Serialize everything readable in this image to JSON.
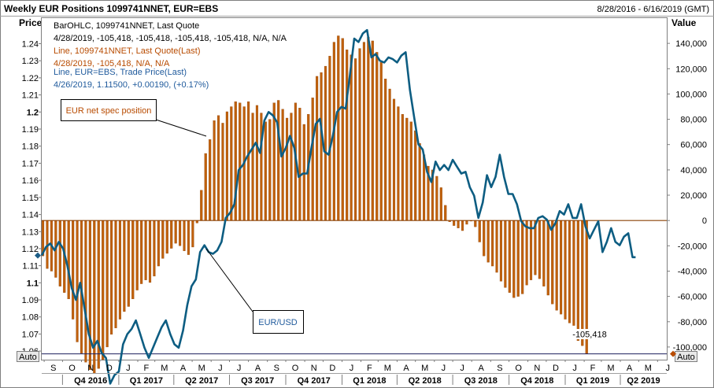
{
  "header": {
    "title": "Weekly EUR Positions 1099741NNET, EUR=EBS",
    "date_range": "8/28/2016 - 6/16/2019 (GMT)"
  },
  "axes": {
    "left_title": "Price",
    "right_title": "Value",
    "left_auto": "Auto",
    "right_auto": "Auto"
  },
  "legend": {
    "line1": "BarOHLC, 1099741NNET, Last Quote",
    "line2": "4/28/2019, -105,418, -105,418, -105,418, -105,418, N/A, N/A",
    "line3": "Line, 1099741NNET, Last Quote(Last)",
    "line4": "4/28/2019, -105,418, N/A, N/A",
    "line5": "Line, EUR=EBS, Trade Price(Last)",
    "line6": "4/26/2019, 1.11500, +0.00190, (+0.17%)"
  },
  "annotations": {
    "net_spec": "EUR net spec position",
    "eurusd": "EUR/USD",
    "last_value": "-105,418"
  },
  "colors": {
    "bars": "#c0600b",
    "bar_edge": "#8a4005",
    "line": "#0d5d82",
    "legend_orange": "#b84b00",
    "legend_blue": "#1f5a9c",
    "grid": "#ccd7e3",
    "ref_line": "#1c1f5e"
  },
  "chart_data": {
    "type": "bar",
    "title": "Weekly EUR Positions 1099741NNET, EUR=EBS",
    "x_range": [
      "2016-08-28",
      "2019-06-16"
    ],
    "bar_series": {
      "name": "1099741NNET",
      "axis": "right",
      "start_date": "2016-08-30",
      "step_days": 7,
      "values": [
        -28000,
        -38000,
        -40000,
        -45000,
        -52000,
        -57000,
        -62000,
        -78000,
        -96000,
        -105000,
        -112000,
        -118000,
        -121000,
        -117000,
        -110000,
        -100000,
        -90000,
        -85000,
        -78000,
        -72000,
        -68000,
        -62000,
        -55000,
        -50000,
        -47000,
        -49000,
        -44000,
        -36000,
        -30000,
        -26000,
        -22000,
        -18000,
        -20000,
        -24000,
        -27000,
        -21000,
        -2000,
        24000,
        53000,
        64000,
        79000,
        83000,
        77000,
        86000,
        90000,
        94000,
        93000,
        90000,
        94000,
        85000,
        91000,
        85000,
        78000,
        80000,
        93000,
        95000,
        88000,
        81000,
        85000,
        93000,
        89000,
        76000,
        84000,
        97000,
        114000,
        117000,
        122000,
        130000,
        141000,
        146000,
        144000,
        135000,
        131000,
        128000,
        136000,
        141000,
        145000,
        142000,
        133000,
        125000,
        112000,
        104000,
        96000,
        90000,
        84000,
        81000,
        78000,
        71000,
        61000,
        52000,
        43000,
        40000,
        35000,
        26000,
        12000,
        -1000,
        -4000,
        -6000,
        -8000,
        -3000,
        0,
        -5000,
        -17000,
        -28000,
        -33000,
        -36000,
        -41000,
        -48000,
        -53000,
        -57000,
        -61000,
        -60000,
        -58000,
        -51000,
        -47000,
        -43000,
        -46000,
        -52000,
        -59000,
        -66000,
        -71000,
        -74000,
        -78000,
        -81000,
        -83000,
        -95000,
        -99000,
        -105418
      ]
    },
    "line_series": {
      "name": "EUR=EBS",
      "axis": "left",
      "points": [
        [
          "2016-08-28",
          1.116
        ],
        [
          "2016-09-04",
          1.121
        ],
        [
          "2016-09-11",
          1.123
        ],
        [
          "2016-09-18",
          1.119
        ],
        [
          "2016-09-25",
          1.124
        ],
        [
          "2016-10-02",
          1.12
        ],
        [
          "2016-10-09",
          1.11
        ],
        [
          "2016-10-16",
          1.097
        ],
        [
          "2016-10-23",
          1.09
        ],
        [
          "2016-10-30",
          1.1
        ],
        [
          "2016-11-06",
          1.085
        ],
        [
          "2016-11-13",
          1.07
        ],
        [
          "2016-11-20",
          1.062
        ],
        [
          "2016-11-27",
          1.066
        ],
        [
          "2016-12-04",
          1.059
        ],
        [
          "2016-12-11",
          1.056
        ],
        [
          "2016-12-18",
          1.041
        ],
        [
          "2016-12-25",
          1.046
        ],
        [
          "2017-01-01",
          1.048
        ],
        [
          "2017-01-08",
          1.064
        ],
        [
          "2017-01-15",
          1.07
        ],
        [
          "2017-01-22",
          1.073
        ],
        [
          "2017-01-29",
          1.078
        ],
        [
          "2017-02-05",
          1.07
        ],
        [
          "2017-02-12",
          1.062
        ],
        [
          "2017-02-19",
          1.056
        ],
        [
          "2017-02-26",
          1.062
        ],
        [
          "2017-03-05",
          1.068
        ],
        [
          "2017-03-12",
          1.074
        ],
        [
          "2017-03-19",
          1.078
        ],
        [
          "2017-03-26",
          1.07
        ],
        [
          "2017-04-02",
          1.064
        ],
        [
          "2017-04-09",
          1.062
        ],
        [
          "2017-04-16",
          1.072
        ],
        [
          "2017-04-23",
          1.087
        ],
        [
          "2017-04-30",
          1.098
        ],
        [
          "2017-05-07",
          1.102
        ],
        [
          "2017-05-14",
          1.118
        ],
        [
          "2017-05-21",
          1.122
        ],
        [
          "2017-05-28",
          1.118
        ],
        [
          "2017-06-04",
          1.117
        ],
        [
          "2017-06-11",
          1.119
        ],
        [
          "2017-06-18",
          1.124
        ],
        [
          "2017-06-25",
          1.138
        ],
        [
          "2017-07-02",
          1.141
        ],
        [
          "2017-07-09",
          1.146
        ],
        [
          "2017-07-16",
          1.166
        ],
        [
          "2017-07-23",
          1.169
        ],
        [
          "2017-07-30",
          1.174
        ],
        [
          "2017-08-06",
          1.178
        ],
        [
          "2017-08-13",
          1.182
        ],
        [
          "2017-08-20",
          1.176
        ],
        [
          "2017-08-27",
          1.195
        ],
        [
          "2017-09-03",
          1.2
        ],
        [
          "2017-09-10",
          1.198
        ],
        [
          "2017-09-17",
          1.194
        ],
        [
          "2017-09-24",
          1.174
        ],
        [
          "2017-10-01",
          1.179
        ],
        [
          "2017-10-08",
          1.186
        ],
        [
          "2017-10-15",
          1.179
        ],
        [
          "2017-10-22",
          1.162
        ],
        [
          "2017-10-29",
          1.164
        ],
        [
          "2017-11-05",
          1.164
        ],
        [
          "2017-11-12",
          1.179
        ],
        [
          "2017-11-19",
          1.193
        ],
        [
          "2017-11-26",
          1.196
        ],
        [
          "2017-12-03",
          1.177
        ],
        [
          "2017-12-10",
          1.175
        ],
        [
          "2017-12-17",
          1.186
        ],
        [
          "2017-12-24",
          1.2
        ],
        [
          "2017-12-31",
          1.203
        ],
        [
          "2018-01-07",
          1.202
        ],
        [
          "2018-01-14",
          1.222
        ],
        [
          "2018-01-21",
          1.243
        ],
        [
          "2018-01-28",
          1.241
        ],
        [
          "2018-02-04",
          1.246
        ],
        [
          "2018-02-11",
          1.248
        ],
        [
          "2018-02-18",
          1.232
        ],
        [
          "2018-02-25",
          1.234
        ],
        [
          "2018-03-04",
          1.23
        ],
        [
          "2018-03-11",
          1.229
        ],
        [
          "2018-03-18",
          1.232
        ],
        [
          "2018-03-25",
          1.231
        ],
        [
          "2018-04-01",
          1.229
        ],
        [
          "2018-04-08",
          1.233
        ],
        [
          "2018-04-15",
          1.235
        ],
        [
          "2018-04-22",
          1.213
        ],
        [
          "2018-04-29",
          1.197
        ],
        [
          "2018-05-06",
          1.181
        ],
        [
          "2018-05-13",
          1.178
        ],
        [
          "2018-05-20",
          1.165
        ],
        [
          "2018-05-27",
          1.159
        ],
        [
          "2018-06-03",
          1.171
        ],
        [
          "2018-06-10",
          1.166
        ],
        [
          "2018-06-17",
          1.169
        ],
        [
          "2018-06-24",
          1.166
        ],
        [
          "2018-07-01",
          1.172
        ],
        [
          "2018-07-08",
          1.168
        ],
        [
          "2018-07-15",
          1.164
        ],
        [
          "2018-07-22",
          1.165
        ],
        [
          "2018-07-29",
          1.156
        ],
        [
          "2018-08-05",
          1.151
        ],
        [
          "2018-08-12",
          1.138
        ],
        [
          "2018-08-19",
          1.147
        ],
        [
          "2018-08-26",
          1.163
        ],
        [
          "2018-09-02",
          1.156
        ],
        [
          "2018-09-09",
          1.162
        ],
        [
          "2018-09-16",
          1.175
        ],
        [
          "2018-09-23",
          1.162
        ],
        [
          "2018-09-30",
          1.152
        ],
        [
          "2018-10-07",
          1.152
        ],
        [
          "2018-10-14",
          1.146
        ],
        [
          "2018-10-21",
          1.136
        ],
        [
          "2018-10-28",
          1.133
        ],
        [
          "2018-11-04",
          1.132
        ],
        [
          "2018-11-11",
          1.132
        ],
        [
          "2018-11-18",
          1.138
        ],
        [
          "2018-11-25",
          1.139
        ],
        [
          "2018-12-02",
          1.137
        ],
        [
          "2018-12-09",
          1.131
        ],
        [
          "2018-12-16",
          1.135
        ],
        [
          "2018-12-23",
          1.142
        ],
        [
          "2018-12-30",
          1.14
        ],
        [
          "2019-01-06",
          1.146
        ],
        [
          "2019-01-13",
          1.138
        ],
        [
          "2019-01-20",
          1.138
        ],
        [
          "2019-01-27",
          1.146
        ],
        [
          "2019-02-03",
          1.133
        ],
        [
          "2019-02-10",
          1.126
        ],
        [
          "2019-02-17",
          1.131
        ],
        [
          "2019-02-24",
          1.136
        ],
        [
          "2019-03-03",
          1.118
        ],
        [
          "2019-03-10",
          1.124
        ],
        [
          "2019-03-17",
          1.132
        ],
        [
          "2019-03-24",
          1.124
        ],
        [
          "2019-03-31",
          1.122
        ],
        [
          "2019-04-07",
          1.127
        ],
        [
          "2019-04-14",
          1.129
        ],
        [
          "2019-04-21",
          1.115
        ],
        [
          "2019-04-26",
          1.115
        ]
      ]
    },
    "left_ylim": [
      1.055,
      1.255
    ],
    "right_ylim": [
      -110000,
      160000
    ],
    "left_ticks": [
      1.06,
      1.07,
      1.08,
      1.09,
      1.1,
      1.11,
      1.12,
      1.13,
      1.14,
      1.15,
      1.16,
      1.17,
      1.18,
      1.19,
      1.2,
      1.21,
      1.22,
      1.23,
      1.24
    ],
    "left_tick_labels": [
      "1.06",
      "1.07",
      "1.08",
      "1.09",
      "1.1",
      "1.11",
      "1.12",
      "1.13",
      "1.14",
      "1.15",
      "1.16",
      "1.17",
      "1.18",
      "1.19",
      "1.2",
      "1.21",
      "1.22",
      "1.23",
      "1.24"
    ],
    "right_ticks": [
      -100000,
      -80000,
      -60000,
      -40000,
      -20000,
      0,
      20000,
      40000,
      60000,
      80000,
      100000,
      120000,
      140000
    ],
    "right_tick_labels": [
      "-100,000",
      "-80,000",
      "-60,000",
      "-40,000",
      "-20,000",
      "0",
      "20,000",
      "40,000",
      "60,000",
      "80,000",
      "100,000",
      "120,000",
      "140,000"
    ],
    "month_ticks": [
      {
        "date": "2016-09-01",
        "label": "S"
      },
      {
        "date": "2016-10-01",
        "label": "O"
      },
      {
        "date": "2016-11-01",
        "label": "N"
      },
      {
        "date": "2016-12-01",
        "label": "D"
      },
      {
        "date": "2017-01-01",
        "label": "J"
      },
      {
        "date": "2017-02-01",
        "label": "F"
      },
      {
        "date": "2017-03-01",
        "label": "M"
      },
      {
        "date": "2017-04-01",
        "label": "A"
      },
      {
        "date": "2017-05-01",
        "label": "M"
      },
      {
        "date": "2017-06-01",
        "label": "J"
      },
      {
        "date": "2017-07-01",
        "label": "J"
      },
      {
        "date": "2017-08-01",
        "label": "A"
      },
      {
        "date": "2017-09-01",
        "label": "S"
      },
      {
        "date": "2017-10-01",
        "label": "O"
      },
      {
        "date": "2017-11-01",
        "label": "N"
      },
      {
        "date": "2017-12-01",
        "label": "D"
      },
      {
        "date": "2018-01-01",
        "label": "J"
      },
      {
        "date": "2018-02-01",
        "label": "F"
      },
      {
        "date": "2018-03-01",
        "label": "M"
      },
      {
        "date": "2018-04-01",
        "label": "A"
      },
      {
        "date": "2018-05-01",
        "label": "M"
      },
      {
        "date": "2018-06-01",
        "label": "J"
      },
      {
        "date": "2018-07-01",
        "label": "J"
      },
      {
        "date": "2018-08-01",
        "label": "A"
      },
      {
        "date": "2018-09-01",
        "label": "S"
      },
      {
        "date": "2018-10-01",
        "label": "O"
      },
      {
        "date": "2018-11-01",
        "label": "N"
      },
      {
        "date": "2018-12-01",
        "label": "D"
      },
      {
        "date": "2019-01-01",
        "label": "J"
      },
      {
        "date": "2019-02-01",
        "label": "F"
      },
      {
        "date": "2019-03-01",
        "label": "M"
      },
      {
        "date": "2019-04-01",
        "label": "A"
      },
      {
        "date": "2019-05-01",
        "label": "M"
      },
      {
        "date": "2019-06-01",
        "label": "J"
      }
    ],
    "quarters": [
      {
        "start": "2016-10-01",
        "end": "2017-01-01",
        "label": "Q4 2016"
      },
      {
        "start": "2017-01-01",
        "end": "2017-04-01",
        "label": "Q1 2017"
      },
      {
        "start": "2017-04-01",
        "end": "2017-07-01",
        "label": "Q2 2017"
      },
      {
        "start": "2017-07-01",
        "end": "2017-10-01",
        "label": "Q3 2017"
      },
      {
        "start": "2017-10-01",
        "end": "2018-01-01",
        "label": "Q4 2017"
      },
      {
        "start": "2018-01-01",
        "end": "2018-04-01",
        "label": "Q1 2018"
      },
      {
        "start": "2018-04-01",
        "end": "2018-07-01",
        "label": "Q2 2018"
      },
      {
        "start": "2018-07-01",
        "end": "2018-10-01",
        "label": "Q3 2018"
      },
      {
        "start": "2018-10-01",
        "end": "2019-01-01",
        "label": "Q4 2018"
      },
      {
        "start": "2019-01-01",
        "end": "2019-04-01",
        "label": "Q1 2019"
      },
      {
        "start": "2019-04-01",
        "end": "2019-06-16",
        "label": "Q2 2019"
      }
    ],
    "reference_line_value": -105418,
    "grid": false
  }
}
